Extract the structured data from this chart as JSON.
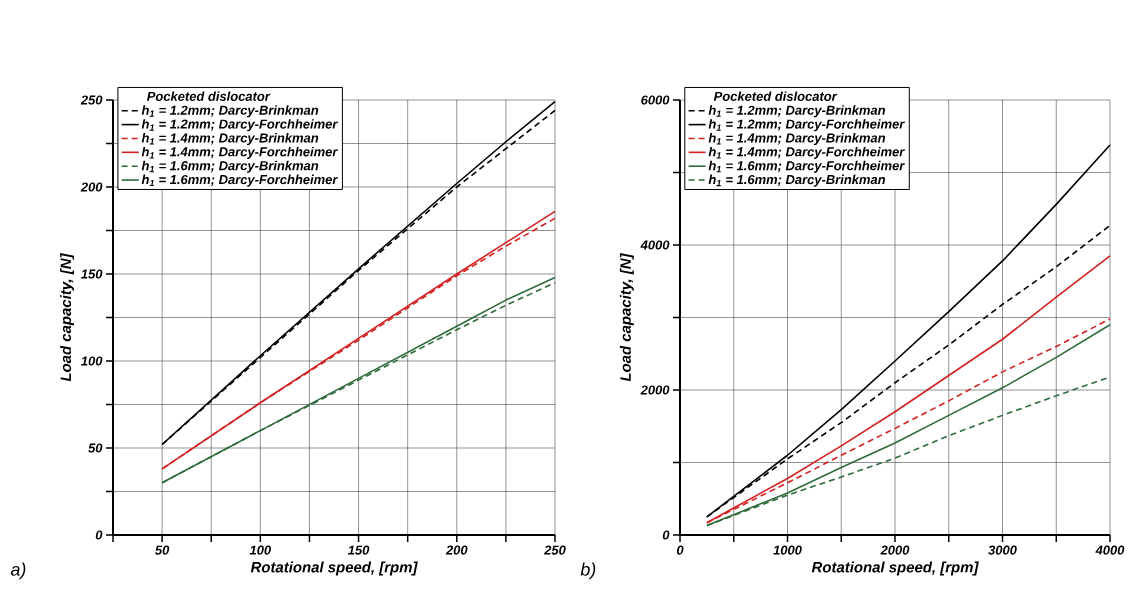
{
  "chart_data": [
    {
      "type": "line",
      "legend_title": "Pocketed dislocator",
      "xlabel": "Rotational speed, [rpm]",
      "ylabel": "Load capacity, [N]",
      "annotations": [
        "a)"
      ],
      "xlim": [
        25,
        250
      ],
      "ylim": [
        0,
        250
      ],
      "xticks": [
        {
          "value": 25,
          "label": null
        },
        50,
        {
          "value": 75,
          "label": null
        },
        100,
        {
          "value": 125,
          "label": null
        },
        150,
        {
          "value": 175,
          "label": null
        },
        200,
        {
          "value": 225,
          "label": null
        },
        250
      ],
      "yticks": [
        0,
        {
          "value": 25,
          "label": null
        },
        50,
        {
          "value": 75,
          "label": null
        },
        100,
        {
          "value": 125,
          "label": null
        },
        150,
        {
          "value": 175,
          "label": null
        },
        200,
        {
          "value": 225,
          "label": null
        },
        250
      ],
      "grid": true,
      "legend": "top left",
      "x": [
        50,
        100,
        150,
        200,
        225,
        250
      ],
      "series": [
        {
          "name": "h$_{1}$ = 1.2mm; Darcy-Brinkman",
          "color": "#000000",
          "line_style": "dashed",
          "values": [
            52,
            102,
            152,
            200,
            222,
            244
          ]
        },
        {
          "name": "h$_{1}$ = 1.2mm; Darcy-Forchheimer",
          "color": "#000000",
          "line_style": "solid",
          "values": [
            52,
            103,
            153,
            202,
            226,
            249
          ]
        },
        {
          "name": "h$_{1}$ = 1.4mm; Darcy-Brinkman",
          "color": "#d42020",
          "line_style": "dashed",
          "values": [
            38,
            76,
            112,
            149,
            166,
            182
          ]
        },
        {
          "name": "h$_{1}$ = 1.4mm; Darcy-Forchheimer",
          "color": "#d42020",
          "line_style": "solid",
          "values": [
            38,
            76,
            113,
            150,
            168,
            186
          ]
        },
        {
          "name": "h$_{1}$ = 1.6mm; Darcy-Brinkman",
          "color": "#2e6b3a",
          "line_style": "dashed",
          "values": [
            30,
            60,
            89,
            118,
            132,
            145
          ]
        },
        {
          "name": "h$_{1}$ = 1.6mm; Darcy-Forchheimer",
          "color": "#2e6b3a",
          "line_style": "solid",
          "values": [
            30,
            60,
            90,
            120,
            135,
            148
          ]
        }
      ]
    },
    {
      "type": "line",
      "legend_title": "Pocketed dislocator",
      "xlabel": "Rotational speed, [rpm]",
      "ylabel": "Load capacity, [N]",
      "annotations": [
        "b)"
      ],
      "xlim": [
        0,
        4000
      ],
      "ylim": [
        0,
        6000
      ],
      "xticks": [
        0,
        {
          "value": 500,
          "label": null
        },
        1000,
        {
          "value": 1500,
          "label": null
        },
        2000,
        {
          "value": 2500,
          "label": null
        },
        3000,
        {
          "value": 3500,
          "label": null
        },
        4000
      ],
      "yticks": [
        0,
        {
          "value": 1000,
          "label": null
        },
        2000,
        {
          "value": 3000,
          "label": null
        },
        4000,
        {
          "value": 5000,
          "label": null
        },
        6000
      ],
      "grid": true,
      "legend": "top left",
      "x": [
        250,
        1000,
        1500,
        2000,
        2500,
        3000,
        3500,
        4000
      ],
      "series": [
        {
          "name": "h$_{1}$ = 1.2mm; Darcy-Brinkman",
          "color": "#000000",
          "line_style": "dashed",
          "values": [
            250,
            1050,
            1550,
            2100,
            2620,
            3180,
            3700,
            4270
          ]
        },
        {
          "name": "h$_{1}$ = 1.2mm; Darcy-Forchheimer",
          "color": "#000000",
          "line_style": "solid",
          "values": [
            250,
            1100,
            1730,
            2400,
            3080,
            3780,
            4560,
            5380
          ]
        },
        {
          "name": "h$_{1}$ = 1.4mm; Darcy-Brinkman",
          "color": "#d42020",
          "line_style": "dashed",
          "values": [
            170,
            720,
            1100,
            1470,
            1850,
            2250,
            2600,
            2980
          ]
        },
        {
          "name": "h$_{1}$ = 1.4mm; Darcy-Forchheimer",
          "color": "#d42020",
          "line_style": "solid",
          "values": [
            170,
            780,
            1230,
            1700,
            2200,
            2700,
            3280,
            3850
          ]
        },
        {
          "name": "h$_{1}$ = 1.6mm; Darcy-Forchheimer",
          "color": "#2e6b3a",
          "line_style": "solid",
          "values": [
            130,
            580,
            930,
            1270,
            1650,
            2030,
            2450,
            2900
          ]
        },
        {
          "name": "h$_{1}$ = 1.6mm; Darcy-Brinkman",
          "color": "#2e6b3a",
          "line_style": "dashed",
          "values": [
            130,
            550,
            800,
            1060,
            1370,
            1650,
            1920,
            2180
          ]
        }
      ]
    }
  ]
}
